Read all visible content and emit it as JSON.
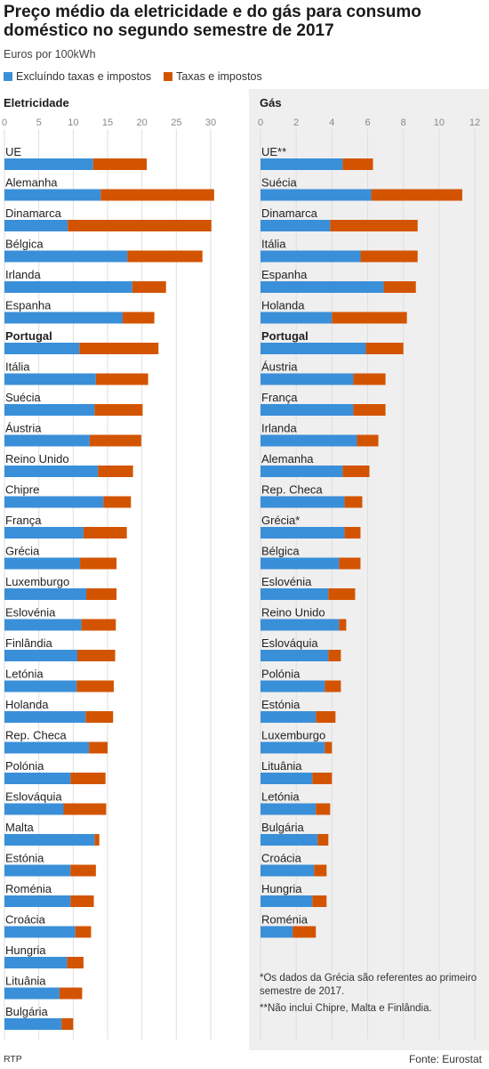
{
  "header": {
    "title": "Preço médio da eletricidade e do gás para consumo doméstico no segundo semestre de 2017",
    "subtitle": "Euros por 100kWh"
  },
  "legend": {
    "items": [
      {
        "label": "Excluíndo taxas e impostos",
        "color": "#3a8fd9"
      },
      {
        "label": "Taxas e impostos",
        "color": "#d35400"
      }
    ]
  },
  "notes": {
    "greece": "*Os dados da Grécia são referentes ao primeiro semestre de 2017.",
    "ue": "**Não inclui Chipre, Malta e Finlândia."
  },
  "footer": {
    "credit": "RTP",
    "source": "Fonte: Eurostat"
  },
  "chart_data": [
    {
      "type": "bar",
      "orientation": "horizontal",
      "stacked": true,
      "title": "Eletricidade",
      "xlim": [
        0,
        30
      ],
      "ticks": [
        0,
        5,
        10,
        15,
        20,
        25,
        30
      ],
      "highlight": "Portugal",
      "series_names": [
        "Excluíndo taxas e impostos",
        "Taxas e impostos"
      ],
      "rows": [
        {
          "label": "UE",
          "excl": 12.9,
          "tax": 7.8
        },
        {
          "label": "Alemanha",
          "excl": 14.0,
          "tax": 16.5
        },
        {
          "label": "Dinamarca",
          "excl": 9.2,
          "tax": 20.9
        },
        {
          "label": "Bélgica",
          "excl": 17.9,
          "tax": 10.9
        },
        {
          "label": "Irlanda",
          "excl": 18.6,
          "tax": 4.9
        },
        {
          "label": "Espanha",
          "excl": 17.2,
          "tax": 4.6
        },
        {
          "label": "Portugal",
          "excl": 10.9,
          "tax": 11.5
        },
        {
          "label": "Itália",
          "excl": 13.3,
          "tax": 7.6
        },
        {
          "label": "Suécia",
          "excl": 13.1,
          "tax": 7.0
        },
        {
          "label": "Áustria",
          "excl": 12.4,
          "tax": 7.5
        },
        {
          "label": "Reino Unido",
          "excl": 13.6,
          "tax": 5.1
        },
        {
          "label": "Chipre",
          "excl": 14.4,
          "tax": 4.0
        },
        {
          "label": "França",
          "excl": 11.5,
          "tax": 6.3
        },
        {
          "label": "Grécia",
          "excl": 11.0,
          "tax": 5.3
        },
        {
          "label": "Luxemburgo",
          "excl": 11.9,
          "tax": 4.4
        },
        {
          "label": "Eslovénia",
          "excl": 11.2,
          "tax": 5.0
        },
        {
          "label": "Finlândia",
          "excl": 10.6,
          "tax": 5.5
        },
        {
          "label": "Letónia",
          "excl": 10.5,
          "tax": 5.4
        },
        {
          "label": "Holanda",
          "excl": 11.8,
          "tax": 4.0
        },
        {
          "label": "Rep. Checa",
          "excl": 12.3,
          "tax": 2.7
        },
        {
          "label": "Polónia",
          "excl": 9.6,
          "tax": 5.1
        },
        {
          "label": "Eslováquia",
          "excl": 8.6,
          "tax": 6.2
        },
        {
          "label": "Malta",
          "excl": 13.1,
          "tax": 0.7
        },
        {
          "label": "Estónia",
          "excl": 9.6,
          "tax": 3.7
        },
        {
          "label": "Roménia",
          "excl": 9.6,
          "tax": 3.4
        },
        {
          "label": "Croácia",
          "excl": 10.3,
          "tax": 2.3
        },
        {
          "label": "Hungria",
          "excl": 9.1,
          "tax": 2.4
        },
        {
          "label": "Lituânia",
          "excl": 8.0,
          "tax": 3.3
        },
        {
          "label": "Bulgária",
          "excl": 8.3,
          "tax": 1.7
        }
      ]
    },
    {
      "type": "bar",
      "orientation": "horizontal",
      "stacked": true,
      "title": "Gás",
      "xlim": [
        0,
        12
      ],
      "ticks": [
        0,
        2,
        4,
        6,
        8,
        10,
        12
      ],
      "highlight": "Portugal",
      "series_names": [
        "Excluíndo taxas e impostos",
        "Taxas e impostos"
      ],
      "rows": [
        {
          "label": "UE**",
          "excl": 4.6,
          "tax": 1.7
        },
        {
          "label": "Suécia",
          "excl": 6.2,
          "tax": 5.1
        },
        {
          "label": "Dinamarca",
          "excl": 3.9,
          "tax": 4.9
        },
        {
          "label": "Itália",
          "excl": 5.6,
          "tax": 3.2
        },
        {
          "label": "Espanha",
          "excl": 6.9,
          "tax": 1.8
        },
        {
          "label": "Holanda",
          "excl": 4.0,
          "tax": 4.2
        },
        {
          "label": "Portugal",
          "excl": 5.9,
          "tax": 2.1
        },
        {
          "label": "Áustria",
          "excl": 5.2,
          "tax": 1.8
        },
        {
          "label": "França",
          "excl": 5.2,
          "tax": 1.8
        },
        {
          "label": "Irlanda",
          "excl": 5.4,
          "tax": 1.2
        },
        {
          "label": "Alemanha",
          "excl": 4.6,
          "tax": 1.5
        },
        {
          "label": "Rep. Checa",
          "excl": 4.7,
          "tax": 1.0
        },
        {
          "label": "Grécia*",
          "excl": 4.7,
          "tax": 0.9
        },
        {
          "label": "Bélgica",
          "excl": 4.4,
          "tax": 1.2
        },
        {
          "label": "Eslovénia",
          "excl": 3.8,
          "tax": 1.5
        },
        {
          "label": "Reino Unido",
          "excl": 4.4,
          "tax": 0.4
        },
        {
          "label": "Eslováquia",
          "excl": 3.8,
          "tax": 0.7
        },
        {
          "label": "Polónia",
          "excl": 3.6,
          "tax": 0.9
        },
        {
          "label": "Estónia",
          "excl": 3.1,
          "tax": 1.1
        },
        {
          "label": "Luxemburgo",
          "excl": 3.6,
          "tax": 0.4
        },
        {
          "label": "Lituânia",
          "excl": 2.9,
          "tax": 1.1
        },
        {
          "label": "Letónia",
          "excl": 3.1,
          "tax": 0.8
        },
        {
          "label": "Bulgária",
          "excl": 3.2,
          "tax": 0.6
        },
        {
          "label": "Croácia",
          "excl": 3.0,
          "tax": 0.7
        },
        {
          "label": "Hungria",
          "excl": 2.9,
          "tax": 0.8
        },
        {
          "label": "Roménia",
          "excl": 1.8,
          "tax": 1.3
        }
      ]
    }
  ]
}
